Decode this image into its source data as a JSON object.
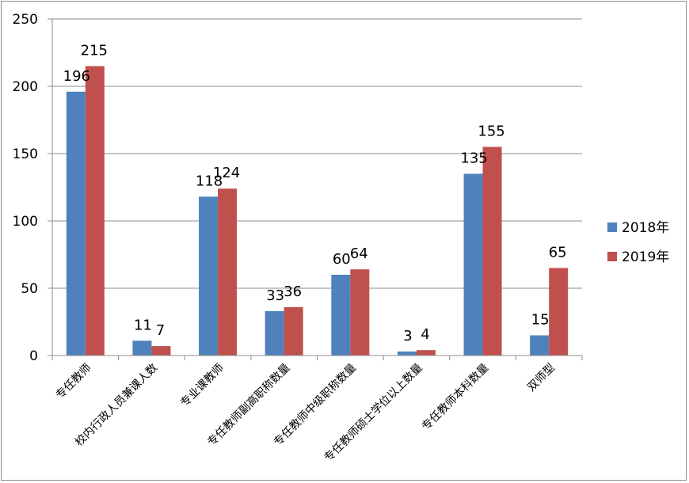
{
  "chart_data": {
    "type": "bar",
    "categories": [
      "专任教师",
      "校内行政人员兼课人数",
      "专业课教师",
      "专任教师副高职称数量",
      "专任教师中级职称数量",
      "专任教师硕士学位以上数量",
      "专任教师本科数量",
      "双师型"
    ],
    "series": [
      {
        "name": "2018年",
        "values": [
          196,
          11,
          118,
          33,
          60,
          3,
          135,
          15
        ],
        "color": "#4F81BD"
      },
      {
        "name": "2019年",
        "values": [
          215,
          7,
          124,
          36,
          64,
          4,
          155,
          65
        ],
        "color": "#C0504D"
      }
    ],
    "yticks": [
      0,
      50,
      100,
      150,
      200,
      250
    ],
    "ylim": [
      0,
      250
    ],
    "grid": true,
    "legend_position": "right",
    "title": "",
    "xlabel": "",
    "ylabel": ""
  }
}
